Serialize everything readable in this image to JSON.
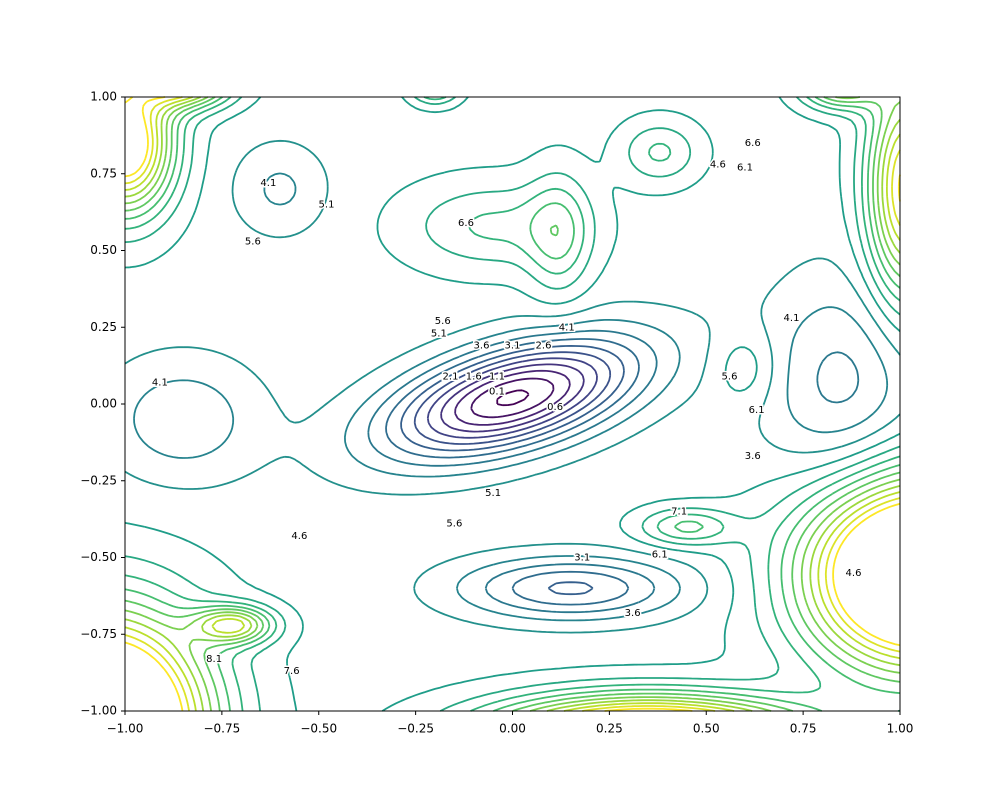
{
  "chart_data": {
    "type": "contour",
    "xlim": [
      -1,
      1
    ],
    "ylim": [
      -1,
      1
    ],
    "xticks": [
      {
        "value": -1,
        "label": "−1.00"
      },
      {
        "value": -0.75,
        "label": "−0.75"
      },
      {
        "value": -0.5,
        "label": "−0.50"
      },
      {
        "value": -0.25,
        "label": "−0.25"
      },
      {
        "value": 0,
        "label": "0.00"
      },
      {
        "value": 0.25,
        "label": "0.25"
      },
      {
        "value": 0.5,
        "label": "0.50"
      },
      {
        "value": 0.75,
        "label": "0.75"
      },
      {
        "value": 1,
        "label": "1.00"
      }
    ],
    "yticks": [
      {
        "value": -1,
        "label": "−1.00"
      },
      {
        "value": -0.75,
        "label": "−0.75"
      },
      {
        "value": -0.5,
        "label": "−0.50"
      },
      {
        "value": -0.25,
        "label": "−0.25"
      },
      {
        "value": 0,
        "label": "0.00"
      },
      {
        "value": 0.25,
        "label": "0.25"
      },
      {
        "value": 0.5,
        "label": "0.50"
      },
      {
        "value": 0.75,
        "label": "0.75"
      },
      {
        "value": 1,
        "label": "1.00"
      }
    ],
    "levels": [
      0.1,
      0.6,
      1.1,
      1.6,
      2.1,
      2.6,
      3.1,
      3.6,
      4.1,
      4.6,
      5.1,
      5.6,
      6.1,
      6.6,
      7.1,
      7.6,
      8.1,
      8.6,
      9.1,
      9.6,
      10.1
    ],
    "colormap": "viridis"
  }
}
